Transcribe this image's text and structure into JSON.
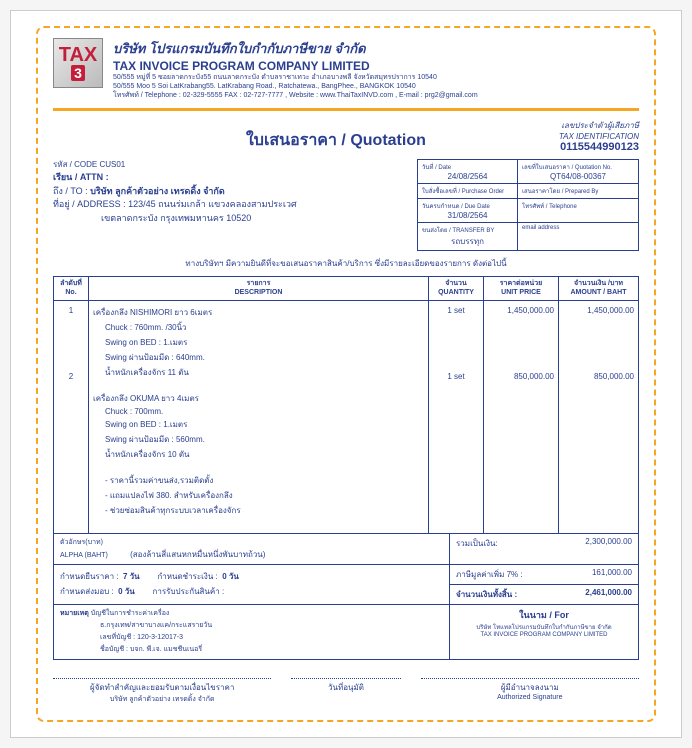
{
  "company": {
    "name_th": "บริษัท โปรแกรมบันทึกใบกำกับภาษีขาย จำกัด",
    "name_en": "TAX INVOICE PROGRAM COMPANY LIMITED",
    "addr1": "50/555 หมู่ที่ 5 ซอยลาดกระบัง55 ถนนลาดกระบัง ตำบลราชาเทวะ อำเภอบางพลี จังหวัดสมุทรปราการ 10540",
    "addr2": "50/555 Moo 5 Soi LatKrabang55. LatKrabang Road., Ratchatewa., BangPhee., BANGKOK 10540",
    "addr3": "โทรศัพท์ / Telephone : 02-329-5555 FAX : 02-727-7777 , Website : www.ThaiTaxINVD.com , E-mail : prg2@gmail.com"
  },
  "logo": {
    "t": "TAX",
    "n": "3"
  },
  "doc": {
    "title": "ใบเสนอราคา / Quotation",
    "tax_id_label": "เลขประจำตัวผู้เสียภาษี\nTAX IDENTIFICATION",
    "tax_id": "0115544990123"
  },
  "customer": {
    "code_label": "รหัส / CODE",
    "code": "CUS01",
    "attn_label": "เรียน / ATTN :",
    "to_label": "ถึง / TO :",
    "name": "บริษัท ลูกค้าตัวอย่าง เทรดดิ้ง จำกัด",
    "addr_label": "ที่อยู่ / ADDRESS :",
    "addr1": "123/45 ถนนร่มเกล้า แขวงคลองสามประเวศ",
    "addr2": "เขตลาดกระบัง กรุงเทพมหานคร  10520"
  },
  "meta": {
    "date_lbl": "วันที่ / Date",
    "date": "24/08/2564",
    "docno_lbl": "เลขที่ใบเสนอราคา / Quotation No.",
    "docno": "QT64/08-00367",
    "po_lbl": "ใบสั่งซื้อเลขที่ / Purchase Order",
    "po": "",
    "prep_lbl": "เสนอราคาโดย / Prepared By",
    "prep": "",
    "due_lbl": "วันครบกำหนด / Due Date",
    "due": "31/08/2564",
    "tel_lbl": "โทรศัพท์ / Telephone",
    "tel": "",
    "tran_lbl": "ขนส่งโดย / TRANSFER BY",
    "tran": "รถบรรทุก",
    "email_lbl": "email address",
    "email": ""
  },
  "intro": "ทางบริษัทฯ มีความยินดีที่จะขอเสนอราคาสินค้า/บริการ ซึ่งมีรายละเอียดของรายการ ดังต่อไปนี้",
  "columns": {
    "no": "ลำดับที่\nNo.",
    "desc": "รายการ\nDESCRIPTION",
    "qty": "จำนวน\nQUANTITY",
    "price": "ราคาต่อหน่วย\nUNIT PRICE",
    "amount": "จำนวนเงิน /บาท\nAMOUNT / BAHT"
  },
  "items": [
    {
      "no": "1",
      "title": "เครื่องกลึง NISHIMORI ยาว 6เมตร",
      "lines": [
        "Chuck : 760mm. /30นิ้ว",
        "Swing on BED : 1.เมตร",
        "Swing ผ่านป้อมมีด : 640mm.",
        "น้ำหนักเครื่องจักร 11 ตัน"
      ],
      "qty": "1 set",
      "price": "1,450,000.00",
      "amount": "1,450,000.00"
    },
    {
      "no": "2",
      "title": "เครื่องกลึง OKUMA ยาว 4เมตร",
      "lines": [
        "Chuck : 700mm.",
        "Swing on BED : 1.เมตร",
        "Swing ผ่านป้อมมีด : 560mm.",
        "น้ำหนักเครื่องจักร 10 ตัน",
        "",
        "- ราคานี้รวมค่าขนส่ง,รวมติดตั้ง",
        "- แถมแปลงไฟ 380. สำหรับเครื่องกลึง",
        "- ช่วยซ่อมสินค้าทุกระบบเวลาเครื่องจักร"
      ],
      "qty": "1 set",
      "price": "850,000.00",
      "amount": "850,000.00"
    }
  ],
  "baht": {
    "label": "ตัวอักษร(บาท)\nALPHA (BAHT)",
    "text": "(สองล้านสี่แสนหกหมื่นหนึ่งพันบาทถ้วน)"
  },
  "terms": {
    "price_lbl": "กำหนดยืนราคา :",
    "price_val": "7 วัน",
    "credit_lbl": "กำหนดชำระเงิน :",
    "credit_val": "0 วัน",
    "deliver_lbl": "กำหนดส่งมอบ :",
    "deliver_val": "0 วัน",
    "warranty_lbl": "การรับประกันสินค้า :",
    "warranty_val": ""
  },
  "totals": {
    "sub_lbl": "รวมเป็นเงิน:",
    "sub": "2,300,000.00",
    "vat_lbl": "ภาษีมูลค่าเพิ่ม 7% :",
    "vat": "161,000.00",
    "grand_lbl": "จำนวนเงินทั้งสิ้น :",
    "grand": "2,461,000.00"
  },
  "notes": {
    "label": "หมายเหตุ",
    "lines": [
      "บัญชีในการชำระค่าเครื่อง",
      "ธ.กรุงเทพ/สาขาบางแค/กระแสรายวัน",
      "เลขที่บัญชี : 120-3-12017-3",
      "ชื่อบัญชี : บจก. พี.เจ. แมชชีนเนอรี่"
    ]
  },
  "for_box": {
    "title": "ในนาม / For",
    "line1": "บริษัท โทแทลโปรแกรมบันทึกใบกำกับภาษีขาย จำกัด",
    "line2": "TAX INVOICE PROGRAM COMPANY LIMITED"
  },
  "sig": {
    "left_th": "ผู้จัดทำสำคัญและยอมรับตามเงื่อนไขราคา",
    "left_en": "วันที่อนุมัติ",
    "right_th": "ผู้มีอำนาจลงนาม",
    "right_en": "Authorized Signature"
  }
}
